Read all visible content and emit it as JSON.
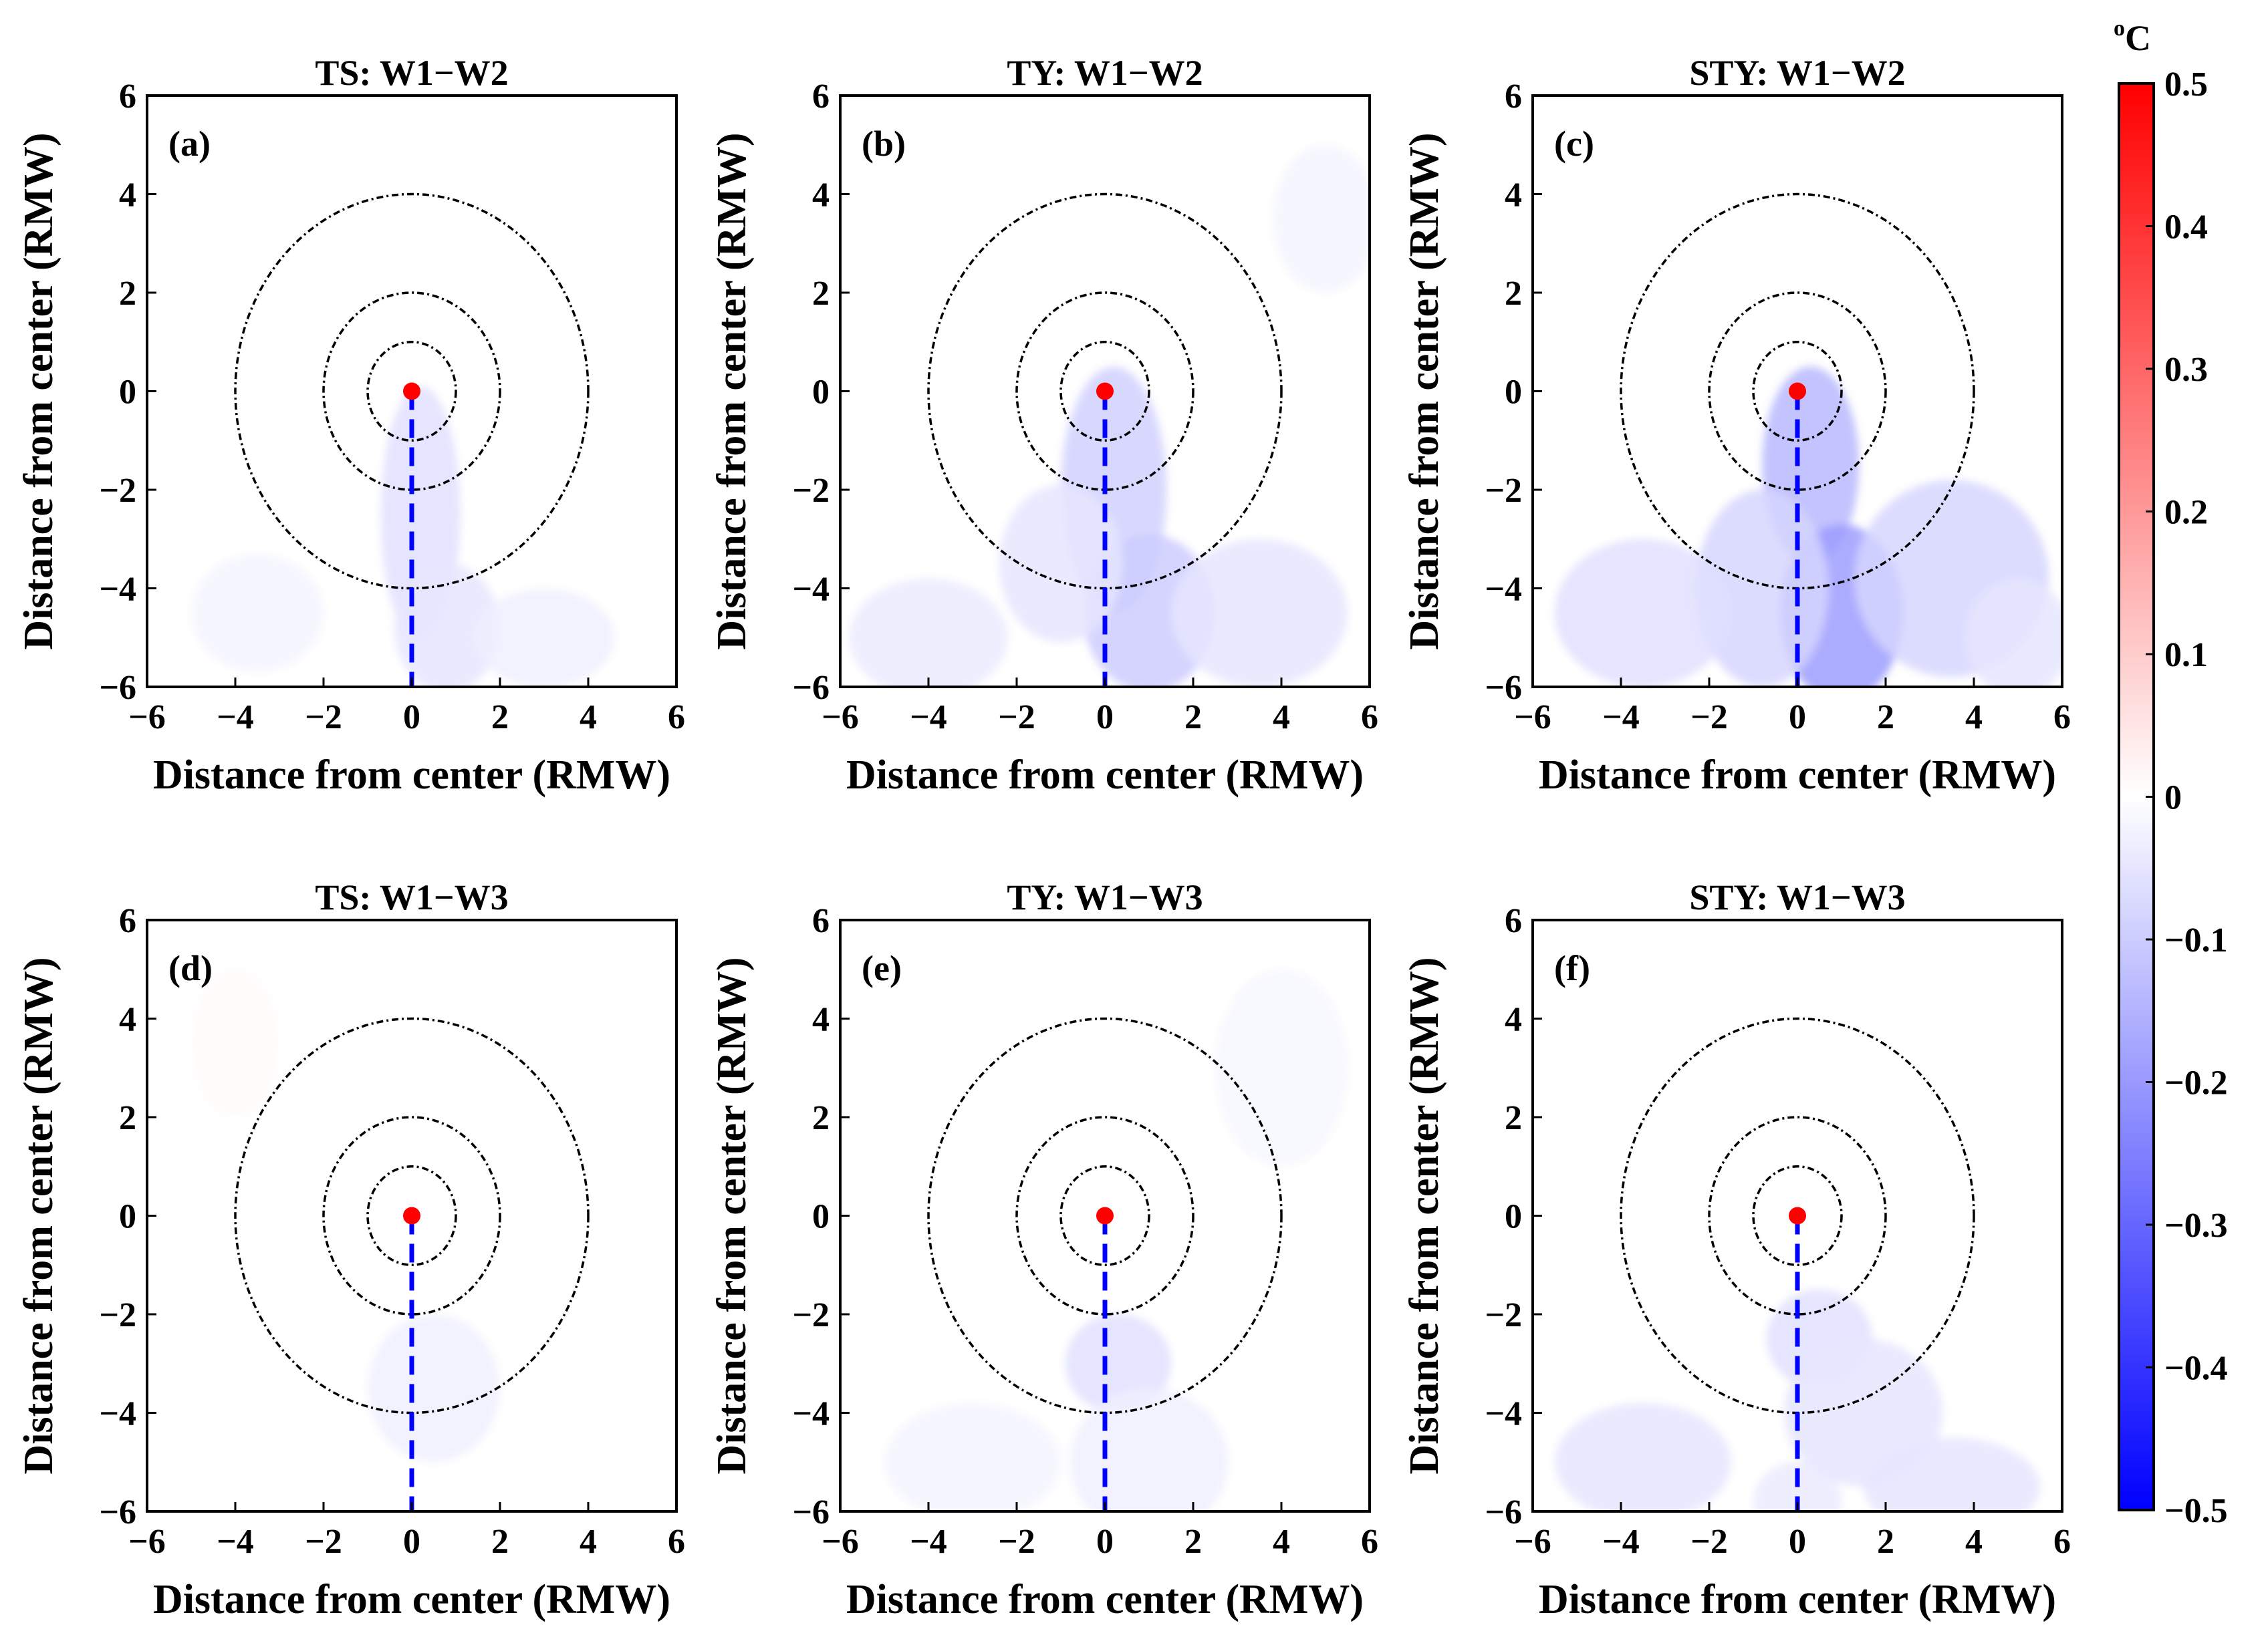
{
  "chart_data": {
    "type": "heatmap",
    "layout": "2x3 panel grid",
    "colorbar": {
      "unit_base": "o",
      "unit_text": "C",
      "range": [
        -0.5,
        0.5
      ],
      "ticks": [
        "0.5",
        "0.4",
        "0.3",
        "0.2",
        "0.1",
        "0",
        "−0.1",
        "−0.2",
        "−0.3",
        "−0.4",
        "−0.5"
      ],
      "colors": {
        "positive": "#ff0000",
        "zero": "#ffffff",
        "negative": "#0000ff"
      }
    },
    "common_axes": {
      "xlabel": "Distance from center (RMW)",
      "ylabel": "Distance from center (RMW)",
      "xlim": [
        -6,
        6
      ],
      "ylim": [
        -6,
        6
      ],
      "xticks": [
        "−6",
        "−4",
        "−2",
        "0",
        "2",
        "4",
        "6"
      ],
      "yticks": [
        "6",
        "4",
        "2",
        "0",
        "−2",
        "−4",
        "−6"
      ],
      "circle_radii_rmw": [
        1,
        2,
        4
      ],
      "center_marker_color": "#ff0000",
      "track_line_color": "#0000ff"
    },
    "panels": [
      {
        "id": "a",
        "label": "(a)",
        "title": "TS: W1−W2",
        "anomalies": [
          {
            "x": 0.2,
            "y": -2.5,
            "sx": 0.9,
            "sy": 2.6,
            "value": -0.06
          },
          {
            "x": 0.8,
            "y": -4.8,
            "sx": 1.2,
            "sy": 1.3,
            "value": -0.05
          },
          {
            "x": 3.0,
            "y": -5.0,
            "sx": 1.6,
            "sy": 1.0,
            "value": -0.03
          },
          {
            "x": -3.5,
            "y": -4.5,
            "sx": 1.5,
            "sy": 1.2,
            "value": -0.02
          }
        ]
      },
      {
        "id": "b",
        "label": "(b)",
        "title": "TY: W1−W2",
        "anomalies": [
          {
            "x": 0.2,
            "y": -2.0,
            "sx": 1.2,
            "sy": 2.5,
            "value": -0.09
          },
          {
            "x": 1.0,
            "y": -4.5,
            "sx": 1.5,
            "sy": 1.6,
            "value": -0.1
          },
          {
            "x": -1.0,
            "y": -3.5,
            "sx": 1.4,
            "sy": 1.6,
            "value": -0.05
          },
          {
            "x": 3.5,
            "y": -4.5,
            "sx": 2.0,
            "sy": 1.5,
            "value": -0.05
          },
          {
            "x": -4.0,
            "y": -5.0,
            "sx": 1.8,
            "sy": 1.2,
            "value": -0.04
          },
          {
            "x": 5.0,
            "y": 3.5,
            "sx": 1.2,
            "sy": 1.5,
            "value": -0.02
          }
        ]
      },
      {
        "id": "c",
        "label": "(c)",
        "title": "STY: W1−W2",
        "anomalies": [
          {
            "x": 0.3,
            "y": -1.5,
            "sx": 1.1,
            "sy": 2.0,
            "value": -0.14
          },
          {
            "x": 1.0,
            "y": -4.5,
            "sx": 1.4,
            "sy": 1.8,
            "value": -0.19
          },
          {
            "x": -0.8,
            "y": -4.0,
            "sx": 1.5,
            "sy": 2.0,
            "value": -0.08
          },
          {
            "x": 3.5,
            "y": -3.8,
            "sx": 2.2,
            "sy": 2.0,
            "value": -0.08
          },
          {
            "x": -3.5,
            "y": -4.5,
            "sx": 2.0,
            "sy": 1.5,
            "value": -0.06
          },
          {
            "x": 5.0,
            "y": -5.0,
            "sx": 1.2,
            "sy": 1.2,
            "value": -0.05
          }
        ]
      },
      {
        "id": "d",
        "label": "(d)",
        "title": "TS: W1−W3",
        "anomalies": [
          {
            "x": 0.5,
            "y": -3.5,
            "sx": 1.5,
            "sy": 1.5,
            "value": -0.03
          },
          {
            "x": -4.0,
            "y": 3.5,
            "sx": 1.0,
            "sy": 1.5,
            "value": 0.01
          }
        ]
      },
      {
        "id": "e",
        "label": "(e)",
        "title": "TY: W1−W3",
        "anomalies": [
          {
            "x": 0.3,
            "y": -3.0,
            "sx": 1.2,
            "sy": 1.0,
            "value": -0.06
          },
          {
            "x": 1.0,
            "y": -5.0,
            "sx": 1.8,
            "sy": 1.5,
            "value": -0.03
          },
          {
            "x": -3.0,
            "y": -5.0,
            "sx": 2.0,
            "sy": 1.2,
            "value": -0.02
          },
          {
            "x": 4.0,
            "y": 3.0,
            "sx": 1.5,
            "sy": 2.0,
            "value": -0.015
          }
        ]
      },
      {
        "id": "f",
        "label": "(f)",
        "title": "STY: W1−W3",
        "anomalies": [
          {
            "x": 0.5,
            "y": -2.5,
            "sx": 1.2,
            "sy": 1.0,
            "value": -0.06
          },
          {
            "x": 1.5,
            "y": -4.0,
            "sx": 1.8,
            "sy": 1.5,
            "value": -0.05
          },
          {
            "x": -3.5,
            "y": -5.0,
            "sx": 2.0,
            "sy": 1.2,
            "value": -0.05
          },
          {
            "x": 3.5,
            "y": -5.5,
            "sx": 2.0,
            "sy": 1.0,
            "value": -0.05
          },
          {
            "x": 0.0,
            "y": -5.8,
            "sx": 1.0,
            "sy": 0.8,
            "value": -0.04
          }
        ]
      }
    ]
  }
}
